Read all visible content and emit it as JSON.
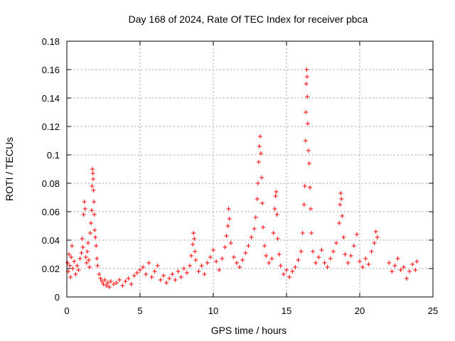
{
  "chart_data": {
    "type": "scatter",
    "title": "Day 168 of 2024, Rate Of TEC Index for receiver pbca",
    "xlabel": "GPS time / hours",
    "ylabel": "ROTI / TECUs",
    "xlim": [
      0,
      25
    ],
    "ylim": [
      0,
      0.18
    ],
    "xticks": [
      "0",
      "5",
      "10",
      "15",
      "20",
      "25"
    ],
    "yticks": [
      "0",
      "0.02",
      "0.04",
      "0.06",
      "0.08",
      "0.1",
      "0.12",
      "0.14",
      "0.16",
      "0.18"
    ],
    "grid": true,
    "marker": "+",
    "color": "#ff0000",
    "series": [
      {
        "points": [
          [
            0.05,
            0.024
          ],
          [
            0.1,
            0.018
          ],
          [
            0.15,
            0.03
          ],
          [
            0.2,
            0.022
          ],
          [
            0.25,
            0.014
          ],
          [
            0.3,
            0.028
          ],
          [
            0.35,
            0.036
          ],
          [
            0.4,
            0.02
          ],
          [
            0.5,
            0.025
          ],
          [
            0.6,
            0.016
          ],
          [
            0.7,
            0.022
          ],
          [
            0.8,
            0.019
          ],
          [
            0.9,
            0.027
          ],
          [
            1.0,
            0.031
          ],
          [
            1.05,
            0.041
          ],
          [
            1.1,
            0.035
          ],
          [
            1.15,
            0.058
          ],
          [
            1.2,
            0.067
          ],
          [
            1.25,
            0.062
          ],
          [
            1.3,
            0.028
          ],
          [
            1.35,
            0.024
          ],
          [
            1.4,
            0.032
          ],
          [
            1.45,
            0.038
          ],
          [
            1.5,
            0.026
          ],
          [
            1.55,
            0.021
          ],
          [
            1.6,
            0.045
          ],
          [
            1.65,
            0.052
          ],
          [
            1.7,
            0.061
          ],
          [
            1.72,
            0.078
          ],
          [
            1.75,
            0.09
          ],
          [
            1.78,
            0.087
          ],
          [
            1.8,
            0.083
          ],
          [
            1.82,
            0.075
          ],
          [
            1.85,
            0.067
          ],
          [
            1.88,
            0.058
          ],
          [
            1.9,
            0.047
          ],
          [
            1.95,
            0.042
          ],
          [
            2.0,
            0.036
          ],
          [
            2.05,
            0.027
          ],
          [
            2.1,
            0.022
          ],
          [
            2.2,
            0.016
          ],
          [
            2.3,
            0.013
          ],
          [
            2.4,
            0.011
          ],
          [
            2.5,
            0.009
          ],
          [
            2.6,
            0.012
          ],
          [
            2.7,
            0.008
          ],
          [
            2.8,
            0.01
          ],
          [
            2.9,
            0.007
          ],
          [
            3.0,
            0.011
          ],
          [
            3.2,
            0.009
          ],
          [
            3.4,
            0.01
          ],
          [
            3.6,
            0.012
          ],
          [
            3.8,
            0.008
          ],
          [
            4.0,
            0.011
          ],
          [
            4.2,
            0.013
          ],
          [
            4.4,
            0.009
          ],
          [
            4.6,
            0.015
          ],
          [
            4.8,
            0.017
          ],
          [
            5.0,
            0.019
          ],
          [
            5.2,
            0.021
          ],
          [
            5.4,
            0.016
          ],
          [
            5.6,
            0.024
          ],
          [
            5.8,
            0.014
          ],
          [
            6.0,
            0.018
          ],
          [
            6.2,
            0.022
          ],
          [
            6.4,
            0.012
          ],
          [
            6.6,
            0.015
          ],
          [
            6.8,
            0.01
          ],
          [
            7.0,
            0.013
          ],
          [
            7.2,
            0.016
          ],
          [
            7.4,
            0.012
          ],
          [
            7.6,
            0.018
          ],
          [
            7.8,
            0.014
          ],
          [
            8.0,
            0.02
          ],
          [
            8.2,
            0.017
          ],
          [
            8.4,
            0.022
          ],
          [
            8.5,
            0.029
          ],
          [
            8.6,
            0.037
          ],
          [
            8.65,
            0.045
          ],
          [
            8.7,
            0.041
          ],
          [
            8.75,
            0.032
          ],
          [
            8.8,
            0.026
          ],
          [
            9.0,
            0.018
          ],
          [
            9.2,
            0.022
          ],
          [
            9.4,
            0.016
          ],
          [
            9.6,
            0.024
          ],
          [
            9.8,
            0.028
          ],
          [
            10.0,
            0.033
          ],
          [
            10.2,
            0.025
          ],
          [
            10.4,
            0.019
          ],
          [
            10.6,
            0.027
          ],
          [
            10.8,
            0.035
          ],
          [
            10.9,
            0.043
          ],
          [
            11.0,
            0.05
          ],
          [
            11.05,
            0.062
          ],
          [
            11.1,
            0.055
          ],
          [
            11.2,
            0.038
          ],
          [
            11.4,
            0.028
          ],
          [
            11.6,
            0.024
          ],
          [
            11.8,
            0.021
          ],
          [
            12.0,
            0.026
          ],
          [
            12.2,
            0.031
          ],
          [
            12.4,
            0.036
          ],
          [
            12.6,
            0.042
          ],
          [
            12.8,
            0.048
          ],
          [
            12.9,
            0.056
          ],
          [
            13.0,
            0.069
          ],
          [
            13.05,
            0.08
          ],
          [
            13.1,
            0.095
          ],
          [
            13.15,
            0.106
          ],
          [
            13.2,
            0.113
          ],
          [
            13.25,
            0.101
          ],
          [
            13.3,
            0.084
          ],
          [
            13.35,
            0.066
          ],
          [
            13.4,
            0.049
          ],
          [
            13.5,
            0.036
          ],
          [
            13.6,
            0.029
          ],
          [
            13.8,
            0.024
          ],
          [
            14.0,
            0.027
          ],
          [
            14.1,
            0.045
          ],
          [
            14.2,
            0.062
          ],
          [
            14.25,
            0.071
          ],
          [
            14.3,
            0.074
          ],
          [
            14.35,
            0.058
          ],
          [
            14.4,
            0.041
          ],
          [
            14.5,
            0.03
          ],
          [
            14.6,
            0.022
          ],
          [
            14.8,
            0.016
          ],
          [
            15.0,
            0.019
          ],
          [
            15.2,
            0.014
          ],
          [
            15.4,
            0.018
          ],
          [
            15.6,
            0.021
          ],
          [
            15.8,
            0.026
          ],
          [
            16.0,
            0.032
          ],
          [
            16.1,
            0.045
          ],
          [
            16.2,
            0.065
          ],
          [
            16.25,
            0.078
          ],
          [
            16.3,
            0.11
          ],
          [
            16.32,
            0.13
          ],
          [
            16.35,
            0.15
          ],
          [
            16.38,
            0.16
          ],
          [
            16.4,
            0.155
          ],
          [
            16.42,
            0.141
          ],
          [
            16.45,
            0.122
          ],
          [
            16.5,
            0.103
          ],
          [
            16.55,
            0.094
          ],
          [
            16.6,
            0.077
          ],
          [
            16.65,
            0.062
          ],
          [
            16.7,
            0.045
          ],
          [
            16.8,
            0.032
          ],
          [
            17.0,
            0.024
          ],
          [
            17.2,
            0.028
          ],
          [
            17.4,
            0.033
          ],
          [
            17.6,
            0.024
          ],
          [
            17.8,
            0.021
          ],
          [
            18.0,
            0.027
          ],
          [
            18.2,
            0.032
          ],
          [
            18.4,
            0.038
          ],
          [
            18.6,
            0.052
          ],
          [
            18.65,
            0.065
          ],
          [
            18.7,
            0.073
          ],
          [
            18.75,
            0.069
          ],
          [
            18.8,
            0.057
          ],
          [
            18.9,
            0.042
          ],
          [
            19.0,
            0.03
          ],
          [
            19.2,
            0.024
          ],
          [
            19.4,
            0.029
          ],
          [
            19.6,
            0.036
          ],
          [
            19.8,
            0.044
          ],
          [
            20.0,
            0.025
          ],
          [
            20.2,
            0.021
          ],
          [
            20.4,
            0.027
          ],
          [
            20.6,
            0.023
          ],
          [
            20.8,
            0.032
          ],
          [
            21.0,
            0.038
          ],
          [
            21.1,
            0.046
          ],
          [
            21.2,
            0.042
          ],
          [
            22.0,
            0.024
          ],
          [
            22.2,
            0.018
          ],
          [
            22.4,
            0.022
          ],
          [
            22.6,
            0.027
          ],
          [
            22.8,
            0.019
          ],
          [
            23.0,
            0.021
          ],
          [
            23.2,
            0.013
          ],
          [
            23.4,
            0.018
          ],
          [
            23.6,
            0.023
          ],
          [
            23.8,
            0.019
          ],
          [
            23.9,
            0.025
          ]
        ]
      }
    ]
  }
}
